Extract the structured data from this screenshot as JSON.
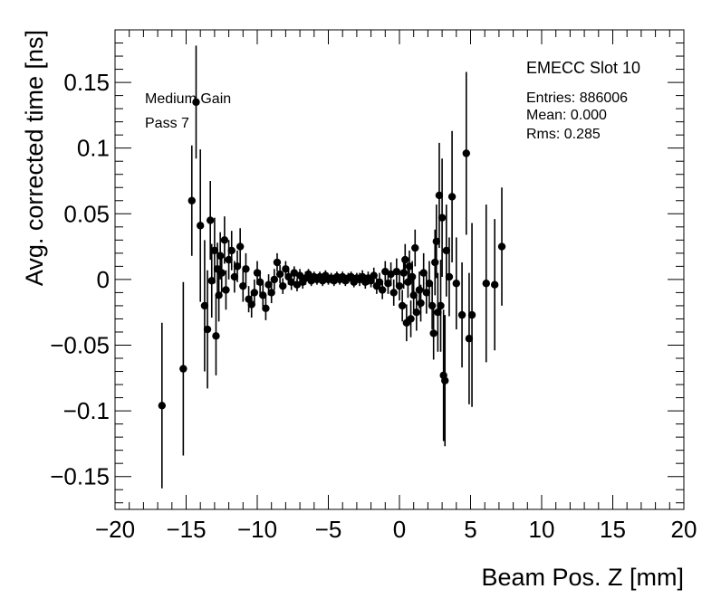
{
  "chart_data": {
    "type": "scatter",
    "title": "",
    "xlabel": "Beam Pos. Z [mm]",
    "ylabel": "Avg. corrected time [ns]",
    "xlim": [
      -20,
      20
    ],
    "ylim": [
      -0.175,
      0.19
    ],
    "grid": false,
    "x_ticks": [
      -20,
      -15,
      -10,
      -5,
      0,
      5,
      10,
      15,
      20
    ],
    "x_tick_labels": [
      "−20",
      "−15",
      "−10",
      "−5",
      "0",
      "5",
      "10",
      "15",
      "20"
    ],
    "y_ticks": [
      -0.15,
      -0.1,
      -0.05,
      0,
      0.05,
      0.1,
      0.15
    ],
    "y_tick_labels": [
      "−0.15",
      "−0.1",
      "−0.05",
      "0",
      "0.05",
      "0.1",
      "0.15"
    ],
    "annotations": {
      "gain": "Medium Gain",
      "pass": "Pass 7"
    },
    "stats_box": {
      "title": "EMECC Slot 10",
      "entries": "Entries: 886006",
      "mean": "Mean: 0.000",
      "rms": "Rms: 0.285"
    },
    "series": [
      {
        "name": "avg corrected time",
        "points": [
          {
            "x": -16.7,
            "y": -0.096,
            "err": 0.063
          },
          {
            "x": -15.2,
            "y": -0.068,
            "err": 0.066
          },
          {
            "x": -14.6,
            "y": 0.06,
            "err": 0.042
          },
          {
            "x": -14.3,
            "y": 0.135,
            "err": 0.043
          },
          {
            "x": -14.0,
            "y": 0.041,
            "err": 0.058
          },
          {
            "x": -13.7,
            "y": -0.02,
            "err": 0.05
          },
          {
            "x": -13.5,
            "y": -0.038,
            "err": 0.045
          },
          {
            "x": -13.3,
            "y": 0.045,
            "err": 0.03
          },
          {
            "x": -13.2,
            "y": -0.001,
            "err": 0.028
          },
          {
            "x": -13.0,
            "y": 0.022,
            "err": 0.025
          },
          {
            "x": -12.9,
            "y": -0.043,
            "err": 0.03
          },
          {
            "x": -12.8,
            "y": 0.008,
            "err": 0.02
          },
          {
            "x": -12.7,
            "y": -0.012,
            "err": 0.02
          },
          {
            "x": -12.6,
            "y": 0.018,
            "err": 0.018
          },
          {
            "x": -12.5,
            "y": 0.005,
            "err": 0.015
          },
          {
            "x": -12.3,
            "y": 0.03,
            "err": 0.018
          },
          {
            "x": -12.2,
            "y": -0.008,
            "err": 0.015
          },
          {
            "x": -12.0,
            "y": 0.015,
            "err": 0.015
          },
          {
            "x": -11.8,
            "y": 0.022,
            "err": 0.015
          },
          {
            "x": -11.6,
            "y": 0.002,
            "err": 0.012
          },
          {
            "x": -11.4,
            "y": 0.01,
            "err": 0.012
          },
          {
            "x": -11.2,
            "y": 0.025,
            "err": 0.014
          },
          {
            "x": -11.0,
            "y": -0.005,
            "err": 0.012
          },
          {
            "x": -10.8,
            "y": 0.008,
            "err": 0.012
          },
          {
            "x": -10.6,
            "y": -0.015,
            "err": 0.01
          },
          {
            "x": -10.4,
            "y": -0.019,
            "err": 0.01
          },
          {
            "x": -10.2,
            "y": -0.01,
            "err": 0.01
          },
          {
            "x": -10.0,
            "y": 0.005,
            "err": 0.009
          },
          {
            "x": -9.8,
            "y": -0.002,
            "err": 0.009
          },
          {
            "x": -9.6,
            "y": -0.012,
            "err": 0.009
          },
          {
            "x": -9.4,
            "y": -0.022,
            "err": 0.009
          },
          {
            "x": -9.2,
            "y": -0.004,
            "err": 0.008
          },
          {
            "x": -9.0,
            "y": -0.01,
            "err": 0.008
          },
          {
            "x": -8.8,
            "y": 0.0,
            "err": 0.008
          },
          {
            "x": -8.6,
            "y": 0.013,
            "err": 0.007
          },
          {
            "x": -8.4,
            "y": 0.004,
            "err": 0.007
          },
          {
            "x": -8.2,
            "y": -0.005,
            "err": 0.006
          },
          {
            "x": -8.0,
            "y": 0.008,
            "err": 0.006
          },
          {
            "x": -7.8,
            "y": 0.002,
            "err": 0.006
          },
          {
            "x": -7.6,
            "y": -0.002,
            "err": 0.006
          },
          {
            "x": -7.4,
            "y": 0.005,
            "err": 0.005
          },
          {
            "x": -7.2,
            "y": -0.004,
            "err": 0.005
          },
          {
            "x": -7.0,
            "y": 0.003,
            "err": 0.005
          },
          {
            "x": -6.8,
            "y": -0.002,
            "err": 0.005
          },
          {
            "x": -6.6,
            "y": 0.001,
            "err": 0.005
          },
          {
            "x": -6.4,
            "y": 0.004,
            "err": 0.004
          },
          {
            "x": -6.2,
            "y": -0.001,
            "err": 0.004
          },
          {
            "x": -6.0,
            "y": 0.002,
            "err": 0.004
          },
          {
            "x": -5.8,
            "y": 0.0,
            "err": 0.004
          },
          {
            "x": -5.6,
            "y": 0.002,
            "err": 0.004
          },
          {
            "x": -5.4,
            "y": -0.001,
            "err": 0.004
          },
          {
            "x": -5.2,
            "y": 0.003,
            "err": 0.004
          },
          {
            "x": -5.0,
            "y": 0.0,
            "err": 0.004
          },
          {
            "x": -4.8,
            "y": 0.001,
            "err": 0.004
          },
          {
            "x": -4.6,
            "y": -0.001,
            "err": 0.004
          },
          {
            "x": -4.4,
            "y": 0.002,
            "err": 0.004
          },
          {
            "x": -4.2,
            "y": 0.0,
            "err": 0.004
          },
          {
            "x": -4.0,
            "y": 0.002,
            "err": 0.004
          },
          {
            "x": -3.8,
            "y": -0.001,
            "err": 0.004
          },
          {
            "x": -3.6,
            "y": 0.001,
            "err": 0.004
          },
          {
            "x": -3.4,
            "y": 0.002,
            "err": 0.004
          },
          {
            "x": -3.2,
            "y": -0.002,
            "err": 0.004
          },
          {
            "x": -3.0,
            "y": 0.001,
            "err": 0.004
          },
          {
            "x": -2.8,
            "y": 0.0,
            "err": 0.005
          },
          {
            "x": -2.6,
            "y": 0.002,
            "err": 0.005
          },
          {
            "x": -2.4,
            "y": -0.002,
            "err": 0.005
          },
          {
            "x": -2.2,
            "y": 0.001,
            "err": 0.005
          },
          {
            "x": -2.0,
            "y": -0.001,
            "err": 0.005
          },
          {
            "x": -1.8,
            "y": 0.003,
            "err": 0.006
          },
          {
            "x": -1.6,
            "y": -0.005,
            "err": 0.006
          },
          {
            "x": -1.4,
            "y": -0.002,
            "err": 0.007
          },
          {
            "x": -1.2,
            "y": -0.008,
            "err": 0.007
          },
          {
            "x": -1.0,
            "y": 0.006,
            "err": 0.008
          },
          {
            "x": -0.8,
            "y": -0.003,
            "err": 0.008
          },
          {
            "x": -0.6,
            "y": 0.004,
            "err": 0.009
          },
          {
            "x": -0.4,
            "y": -0.01,
            "err": 0.01
          },
          {
            "x": -0.2,
            "y": 0.006,
            "err": 0.01
          },
          {
            "x": 0.0,
            "y": -0.005,
            "err": 0.011
          },
          {
            "x": 0.2,
            "y": -0.02,
            "err": 0.012
          },
          {
            "x": 0.3,
            "y": 0.005,
            "err": 0.012
          },
          {
            "x": 0.4,
            "y": 0.015,
            "err": 0.012
          },
          {
            "x": 0.5,
            "y": -0.033,
            "err": 0.014
          },
          {
            "x": 0.6,
            "y": -0.002,
            "err": 0.012
          },
          {
            "x": 0.7,
            "y": 0.01,
            "err": 0.012
          },
          {
            "x": 0.8,
            "y": -0.03,
            "err": 0.014
          },
          {
            "x": 0.9,
            "y": 0.002,
            "err": 0.012
          },
          {
            "x": 1.0,
            "y": -0.012,
            "err": 0.012
          },
          {
            "x": 1.1,
            "y": 0.024,
            "err": 0.014
          },
          {
            "x": 1.2,
            "y": -0.025,
            "err": 0.014
          },
          {
            "x": 1.4,
            "y": -0.008,
            "err": 0.014
          },
          {
            "x": 1.5,
            "y": -0.018,
            "err": 0.014
          },
          {
            "x": 1.7,
            "y": 0.005,
            "err": 0.015
          },
          {
            "x": 1.9,
            "y": -0.01,
            "err": 0.016
          },
          {
            "x": 2.1,
            "y": -0.003,
            "err": 0.017
          },
          {
            "x": 2.3,
            "y": -0.02,
            "err": 0.018
          },
          {
            "x": 2.4,
            "y": -0.041,
            "err": 0.02
          },
          {
            "x": 2.5,
            "y": 0.013,
            "err": 0.025
          },
          {
            "x": 2.6,
            "y": 0.029,
            "err": 0.028
          },
          {
            "x": 2.7,
            "y": -0.025,
            "err": 0.03
          },
          {
            "x": 2.8,
            "y": 0.064,
            "err": 0.04
          },
          {
            "x": 2.9,
            "y": -0.02,
            "err": 0.035
          },
          {
            "x": 3.0,
            "y": 0.047,
            "err": 0.045
          },
          {
            "x": 3.1,
            "y": -0.073,
            "err": 0.05
          },
          {
            "x": 3.2,
            "y": -0.077,
            "err": 0.05
          },
          {
            "x": 3.3,
            "y": 0.022,
            "err": 0.035
          },
          {
            "x": 3.5,
            "y": 0.002,
            "err": 0.03
          },
          {
            "x": 3.7,
            "y": 0.063,
            "err": 0.05
          },
          {
            "x": 4.0,
            "y": -0.003,
            "err": 0.035
          },
          {
            "x": 4.4,
            "y": -0.027,
            "err": 0.04
          },
          {
            "x": 4.7,
            "y": 0.096,
            "err": 0.062
          },
          {
            "x": 4.9,
            "y": -0.045,
            "err": 0.05
          },
          {
            "x": 5.1,
            "y": -0.027,
            "err": 0.07
          },
          {
            "x": 6.1,
            "y": -0.003,
            "err": 0.06
          },
          {
            "x": 6.7,
            "y": -0.004,
            "err": 0.05
          },
          {
            "x": 7.2,
            "y": 0.025,
            "err": 0.045
          }
        ]
      }
    ]
  }
}
